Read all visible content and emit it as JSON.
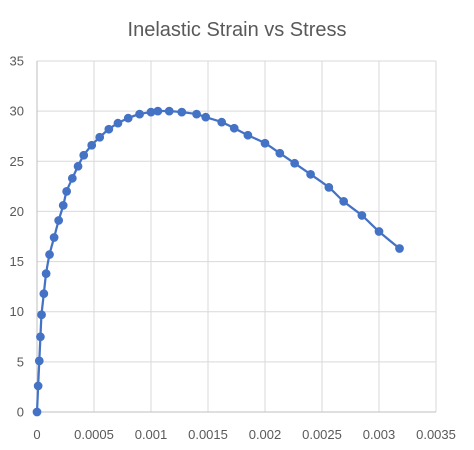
{
  "chart_data": {
    "type": "scatter",
    "title": "Inelastic Strain vs Stress",
    "xlabel": "",
    "ylabel": "",
    "xlim": [
      0,
      0.0035
    ],
    "ylim": [
      0,
      35
    ],
    "xticks": [
      0,
      0.0005,
      0.001,
      0.0015,
      0.002,
      0.0025,
      0.003,
      0.0035
    ],
    "xtick_labels": [
      "0",
      "0.0005",
      "0.001",
      "0.0015",
      "0.002",
      "0.0025",
      "0.003",
      "0.0035"
    ],
    "yticks": [
      0,
      5,
      10,
      15,
      20,
      25,
      30,
      35
    ],
    "ytick_labels": [
      "0",
      "5",
      "10",
      "15",
      "20",
      "25",
      "30",
      "35"
    ],
    "grid": true,
    "legend": "none",
    "series": [
      {
        "color": "#4472C4",
        "marker": "circle",
        "line": "smooth",
        "x": [
          0,
          1e-05,
          2e-05,
          3e-05,
          4e-05,
          6e-05,
          8e-05,
          0.00011,
          0.00015,
          0.00019,
          0.00023,
          0.00026,
          0.00031,
          0.00036,
          0.00041,
          0.00048,
          0.00055,
          0.00063,
          0.00071,
          0.0008,
          0.0009,
          0.001,
          0.00106,
          0.00116,
          0.00127,
          0.0014,
          0.00148,
          0.00162,
          0.00173,
          0.00185,
          0.002,
          0.00213,
          0.00226,
          0.0024,
          0.00256,
          0.00269,
          0.00285,
          0.003,
          0.00318
        ],
        "y": [
          0,
          2.6,
          5.1,
          7.5,
          9.7,
          11.8,
          13.8,
          15.7,
          17.4,
          19.1,
          20.6,
          22.0,
          23.3,
          24.5,
          25.6,
          26.6,
          27.4,
          28.2,
          28.8,
          29.3,
          29.7,
          29.9,
          30.0,
          30.0,
          29.9,
          29.7,
          29.4,
          28.9,
          28.3,
          27.6,
          26.8,
          25.8,
          24.8,
          23.7,
          22.4,
          21.0,
          19.6,
          18.0,
          16.3
        ]
      }
    ]
  }
}
